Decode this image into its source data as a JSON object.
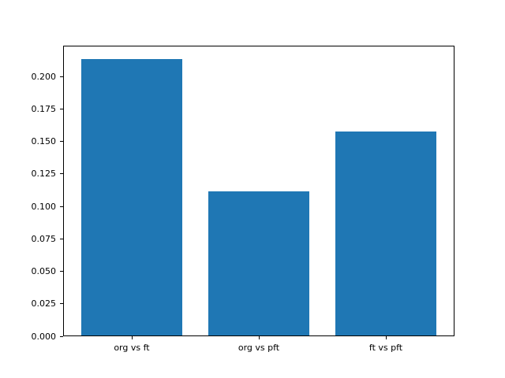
{
  "figure": {
    "background_color": "#ffffff",
    "axis_color": "#000000"
  },
  "chart_data": {
    "type": "bar",
    "categories": [
      "org vs ft",
      "org vs pft",
      "ft vs pft"
    ],
    "values": [
      0.213,
      0.111,
      0.157
    ],
    "title": "",
    "xlabel": "",
    "ylabel": "",
    "ylim": [
      0,
      0.2237
    ],
    "yticks": [
      0.0,
      0.025,
      0.05,
      0.075,
      0.1,
      0.125,
      0.15,
      0.175,
      0.2
    ],
    "ytick_labels": [
      "0.000",
      "0.025",
      "0.050",
      "0.075",
      "0.100",
      "0.125",
      "0.150",
      "0.175",
      "0.200"
    ],
    "bar_color": "#1f77b4",
    "bar_width_fraction": 0.8,
    "x_margin_fraction": 0.05,
    "grid": false,
    "legend": null
  }
}
